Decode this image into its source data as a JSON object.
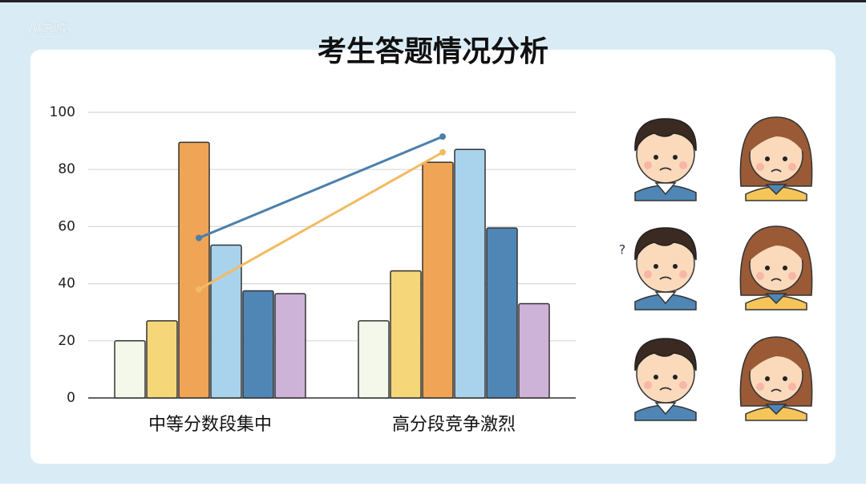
{
  "watermark": "AI生成",
  "chart_data": {
    "type": "bar",
    "title": "考生答题情况分析",
    "categories": [
      "中等分数段集中",
      "高分段竞争激烈"
    ],
    "series": [
      {
        "color": "#f3f8ea",
        "values": [
          20,
          27
        ]
      },
      {
        "color": "#f5d77a",
        "values": [
          27,
          44.5
        ]
      },
      {
        "color": "#f0a455",
        "values": [
          89.5,
          82.5
        ]
      },
      {
        "color": "#a9d3ec",
        "values": [
          53.5,
          87
        ]
      },
      {
        "color": "#4f86b5",
        "values": [
          37.5,
          59.5
        ]
      },
      {
        "color": "#cdb3d8",
        "values": [
          36.5,
          33
        ]
      },
      {
        "type": "line",
        "color": "#4a7fab",
        "values": [
          56,
          91.5
        ]
      },
      {
        "type": "line",
        "color": "#f2bb62",
        "values": [
          38,
          86
        ]
      }
    ],
    "ylim": [
      0,
      100
    ],
    "yticks": [
      0,
      20,
      40,
      60,
      80,
      100
    ],
    "grid": true,
    "annotation": "?"
  }
}
